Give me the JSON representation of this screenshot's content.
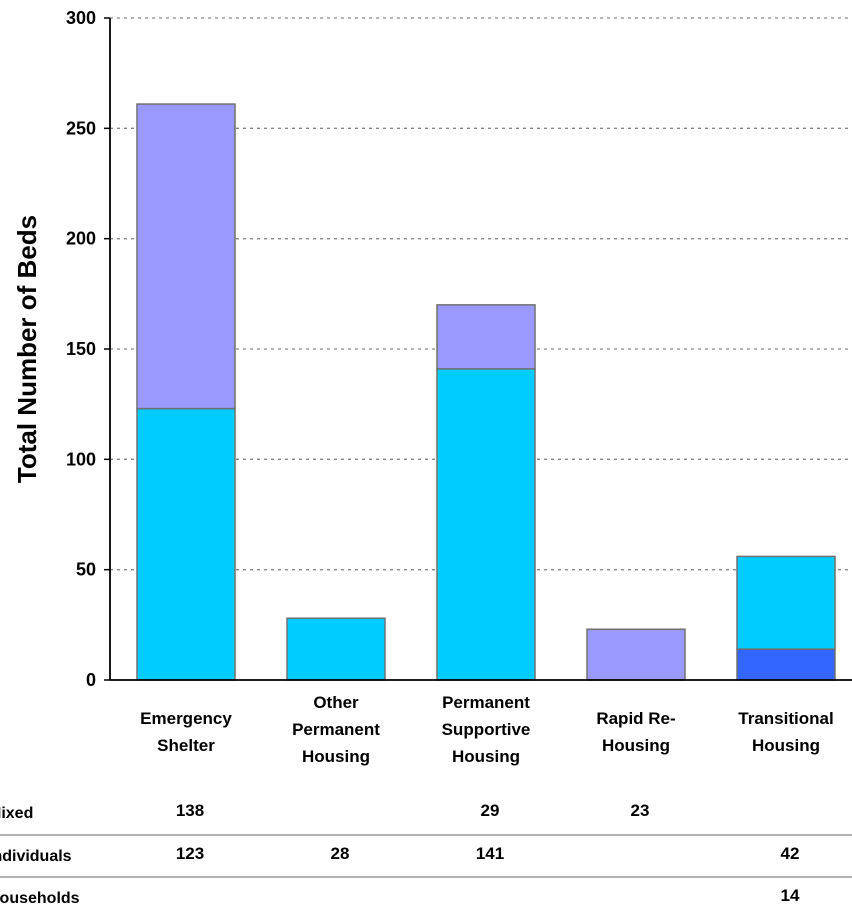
{
  "chart_data": {
    "type": "bar",
    "stacked": true,
    "ylabel": "Total Number of Beds",
    "xlabel": "",
    "ylim": [
      0,
      300
    ],
    "yticks": [
      0,
      50,
      100,
      150,
      200,
      250,
      300
    ],
    "grid": true,
    "categories": [
      [
        "Emergency",
        "Shelter"
      ],
      [
        "Other",
        "Permanent",
        "Housing"
      ],
      [
        "Permanent",
        "Supportive",
        "Housing"
      ],
      [
        "Rapid Re-",
        "Housing"
      ],
      [
        "Transitional",
        "Housing"
      ]
    ],
    "series": [
      {
        "name": "Households",
        "color": "#3366FF",
        "values": [
          null,
          null,
          null,
          null,
          14
        ]
      },
      {
        "name": "Individuals",
        "color": "#00CCFF",
        "values": [
          123,
          28,
          141,
          null,
          42
        ]
      },
      {
        "name": "Mixed",
        "color": "#9999FF",
        "values": [
          138,
          null,
          29,
          23,
          null
        ]
      }
    ],
    "table_rows": [
      "Mixed",
      "Individuals",
      "Households"
    ]
  }
}
